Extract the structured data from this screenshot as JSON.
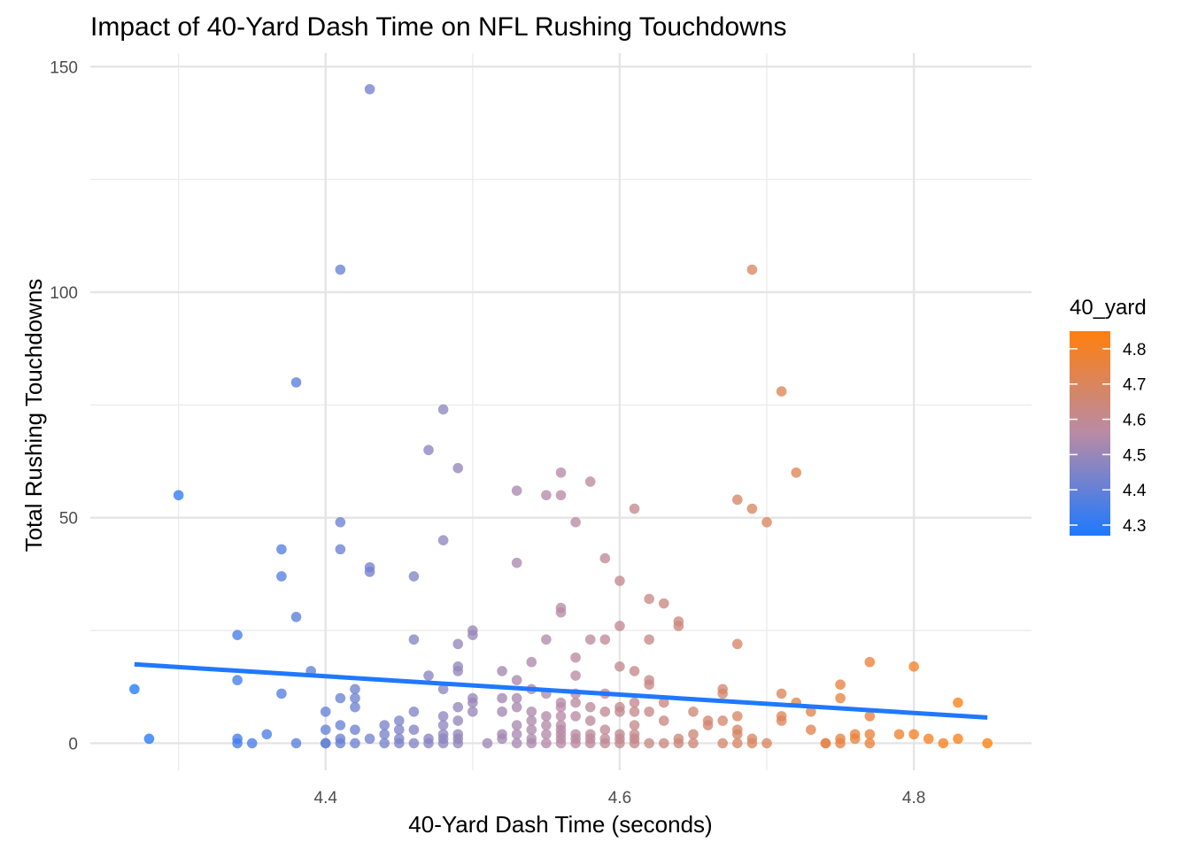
{
  "chart_data": {
    "type": "scatter",
    "title": "Impact of 40-Yard Dash Time on NFL Rushing Touchdowns",
    "xlabel": "40-Yard Dash Time (seconds)",
    "ylabel": "Total Rushing Touchdowns",
    "xlim": [
      4.24,
      4.88
    ],
    "ylim": [
      -6,
      153
    ],
    "x_ticks": [
      4.4,
      4.6,
      4.8
    ],
    "x_tick_labels": [
      "4.4",
      "4.6",
      "4.8"
    ],
    "y_ticks": [
      0,
      50,
      100,
      150
    ],
    "y_tick_labels": [
      "0",
      "50",
      "100",
      "150"
    ],
    "grid": true,
    "legend": {
      "title": "40_yard",
      "position": "right",
      "type": "colorbar",
      "range": [
        4.27,
        4.85
      ],
      "ticks": [
        4.3,
        4.4,
        4.5,
        4.6,
        4.7,
        4.8
      ],
      "tick_labels": [
        "4.3",
        "4.4",
        "4.5",
        "4.6",
        "4.7",
        "4.8"
      ],
      "low_color": "#1f78ff",
      "mid_color": "#b88ba6",
      "high_color": "#ff7f0e"
    },
    "trend_line": {
      "color": "#1f78ff",
      "x": [
        4.27,
        4.85
      ],
      "y": [
        17.5,
        5.7
      ]
    },
    "points": [
      [
        4.27,
        12
      ],
      [
        4.28,
        1
      ],
      [
        4.3,
        55
      ],
      [
        4.34,
        24
      ],
      [
        4.34,
        14
      ],
      [
        4.34,
        1
      ],
      [
        4.34,
        0
      ],
      [
        4.35,
        0
      ],
      [
        4.36,
        2
      ],
      [
        4.37,
        43
      ],
      [
        4.37,
        37
      ],
      [
        4.37,
        11
      ],
      [
        4.38,
        80
      ],
      [
        4.38,
        28
      ],
      [
        4.38,
        0
      ],
      [
        4.39,
        16
      ],
      [
        4.4,
        7
      ],
      [
        4.4,
        3
      ],
      [
        4.4,
        0
      ],
      [
        4.4,
        0
      ],
      [
        4.41,
        105
      ],
      [
        4.41,
        49
      ],
      [
        4.41,
        43
      ],
      [
        4.41,
        10
      ],
      [
        4.41,
        4
      ],
      [
        4.41,
        1
      ],
      [
        4.41,
        0
      ],
      [
        4.42,
        12
      ],
      [
        4.42,
        10
      ],
      [
        4.42,
        8
      ],
      [
        4.42,
        3
      ],
      [
        4.42,
        0
      ],
      [
        4.43,
        145
      ],
      [
        4.43,
        39
      ],
      [
        4.43,
        38
      ],
      [
        4.43,
        1
      ],
      [
        4.44,
        4
      ],
      [
        4.44,
        2
      ],
      [
        4.44,
        0
      ],
      [
        4.45,
        5
      ],
      [
        4.45,
        3
      ],
      [
        4.45,
        1
      ],
      [
        4.45,
        0
      ],
      [
        4.46,
        37
      ],
      [
        4.46,
        23
      ],
      [
        4.46,
        7
      ],
      [
        4.46,
        3
      ],
      [
        4.46,
        0
      ],
      [
        4.47,
        65
      ],
      [
        4.47,
        15
      ],
      [
        4.47,
        1
      ],
      [
        4.47,
        0
      ],
      [
        4.48,
        74
      ],
      [
        4.48,
        45
      ],
      [
        4.48,
        12
      ],
      [
        4.48,
        6
      ],
      [
        4.48,
        4
      ],
      [
        4.48,
        2
      ],
      [
        4.48,
        1
      ],
      [
        4.48,
        0
      ],
      [
        4.49,
        61
      ],
      [
        4.49,
        22
      ],
      [
        4.49,
        17
      ],
      [
        4.49,
        16
      ],
      [
        4.49,
        8
      ],
      [
        4.49,
        5
      ],
      [
        4.49,
        2
      ],
      [
        4.49,
        1
      ],
      [
        4.49,
        0
      ],
      [
        4.5,
        25
      ],
      [
        4.5,
        24
      ],
      [
        4.5,
        10
      ],
      [
        4.5,
        9
      ],
      [
        4.5,
        7
      ],
      [
        4.51,
        0
      ],
      [
        4.52,
        16
      ],
      [
        4.52,
        10
      ],
      [
        4.52,
        7
      ],
      [
        4.52,
        2
      ],
      [
        4.52,
        1
      ],
      [
        4.53,
        56
      ],
      [
        4.53,
        40
      ],
      [
        4.53,
        14
      ],
      [
        4.53,
        10
      ],
      [
        4.53,
        8
      ],
      [
        4.53,
        4
      ],
      [
        4.53,
        2
      ],
      [
        4.53,
        0
      ],
      [
        4.54,
        18
      ],
      [
        4.54,
        12
      ],
      [
        4.54,
        7
      ],
      [
        4.54,
        5
      ],
      [
        4.54,
        3
      ],
      [
        4.54,
        1
      ],
      [
        4.54,
        0
      ],
      [
        4.55,
        55
      ],
      [
        4.55,
        23
      ],
      [
        4.55,
        11
      ],
      [
        4.55,
        6
      ],
      [
        4.55,
        4
      ],
      [
        4.55,
        2
      ],
      [
        4.55,
        0
      ],
      [
        4.56,
        60
      ],
      [
        4.56,
        55
      ],
      [
        4.56,
        30
      ],
      [
        4.56,
        29
      ],
      [
        4.56,
        9
      ],
      [
        4.56,
        8
      ],
      [
        4.56,
        6
      ],
      [
        4.56,
        4
      ],
      [
        4.56,
        3
      ],
      [
        4.56,
        2
      ],
      [
        4.56,
        1
      ],
      [
        4.56,
        0
      ],
      [
        4.57,
        49
      ],
      [
        4.57,
        19
      ],
      [
        4.57,
        15
      ],
      [
        4.57,
        11
      ],
      [
        4.57,
        9
      ],
      [
        4.57,
        6
      ],
      [
        4.57,
        2
      ],
      [
        4.57,
        1
      ],
      [
        4.57,
        0
      ],
      [
        4.58,
        58
      ],
      [
        4.58,
        23
      ],
      [
        4.58,
        8
      ],
      [
        4.58,
        5
      ],
      [
        4.58,
        2
      ],
      [
        4.58,
        1
      ],
      [
        4.58,
        0
      ],
      [
        4.59,
        41
      ],
      [
        4.59,
        23
      ],
      [
        4.59,
        11
      ],
      [
        4.59,
        7
      ],
      [
        4.59,
        3
      ],
      [
        4.59,
        1
      ],
      [
        4.59,
        0
      ],
      [
        4.6,
        36
      ],
      [
        4.6,
        26
      ],
      [
        4.6,
        17
      ],
      [
        4.6,
        8
      ],
      [
        4.6,
        7
      ],
      [
        4.6,
        2
      ],
      [
        4.6,
        1
      ],
      [
        4.6,
        0
      ],
      [
        4.61,
        52
      ],
      [
        4.61,
        16
      ],
      [
        4.61,
        9
      ],
      [
        4.61,
        7
      ],
      [
        4.61,
        4
      ],
      [
        4.61,
        2
      ],
      [
        4.61,
        1
      ],
      [
        4.61,
        0
      ],
      [
        4.62,
        32
      ],
      [
        4.62,
        23
      ],
      [
        4.62,
        14
      ],
      [
        4.62,
        13
      ],
      [
        4.62,
        7
      ],
      [
        4.62,
        0
      ],
      [
        4.63,
        31
      ],
      [
        4.63,
        9
      ],
      [
        4.63,
        5
      ],
      [
        4.63,
        0
      ],
      [
        4.64,
        27
      ],
      [
        4.64,
        26
      ],
      [
        4.64,
        1
      ],
      [
        4.64,
        0
      ],
      [
        4.65,
        7
      ],
      [
        4.65,
        2
      ],
      [
        4.65,
        0
      ],
      [
        4.66,
        5
      ],
      [
        4.66,
        4
      ],
      [
        4.67,
        12
      ],
      [
        4.67,
        11
      ],
      [
        4.67,
        5
      ],
      [
        4.67,
        0
      ],
      [
        4.68,
        54
      ],
      [
        4.68,
        22
      ],
      [
        4.68,
        6
      ],
      [
        4.68,
        3
      ],
      [
        4.68,
        2
      ],
      [
        4.68,
        0
      ],
      [
        4.69,
        105
      ],
      [
        4.69,
        52
      ],
      [
        4.69,
        1
      ],
      [
        4.69,
        0
      ],
      [
        4.7,
        49
      ],
      [
        4.7,
        0
      ],
      [
        4.71,
        78
      ],
      [
        4.71,
        11
      ],
      [
        4.71,
        6
      ],
      [
        4.71,
        5
      ],
      [
        4.72,
        60
      ],
      [
        4.72,
        9
      ],
      [
        4.73,
        7
      ],
      [
        4.73,
        3
      ],
      [
        4.74,
        0
      ],
      [
        4.74,
        0
      ],
      [
        4.75,
        13
      ],
      [
        4.75,
        10
      ],
      [
        4.75,
        1
      ],
      [
        4.75,
        0
      ],
      [
        4.76,
        2
      ],
      [
        4.76,
        1
      ],
      [
        4.77,
        18
      ],
      [
        4.77,
        6
      ],
      [
        4.77,
        2
      ],
      [
        4.77,
        0
      ],
      [
        4.79,
        2
      ],
      [
        4.8,
        17
      ],
      [
        4.8,
        2
      ],
      [
        4.81,
        1
      ],
      [
        4.82,
        0
      ],
      [
        4.83,
        9
      ],
      [
        4.83,
        1
      ],
      [
        4.85,
        0
      ]
    ]
  }
}
